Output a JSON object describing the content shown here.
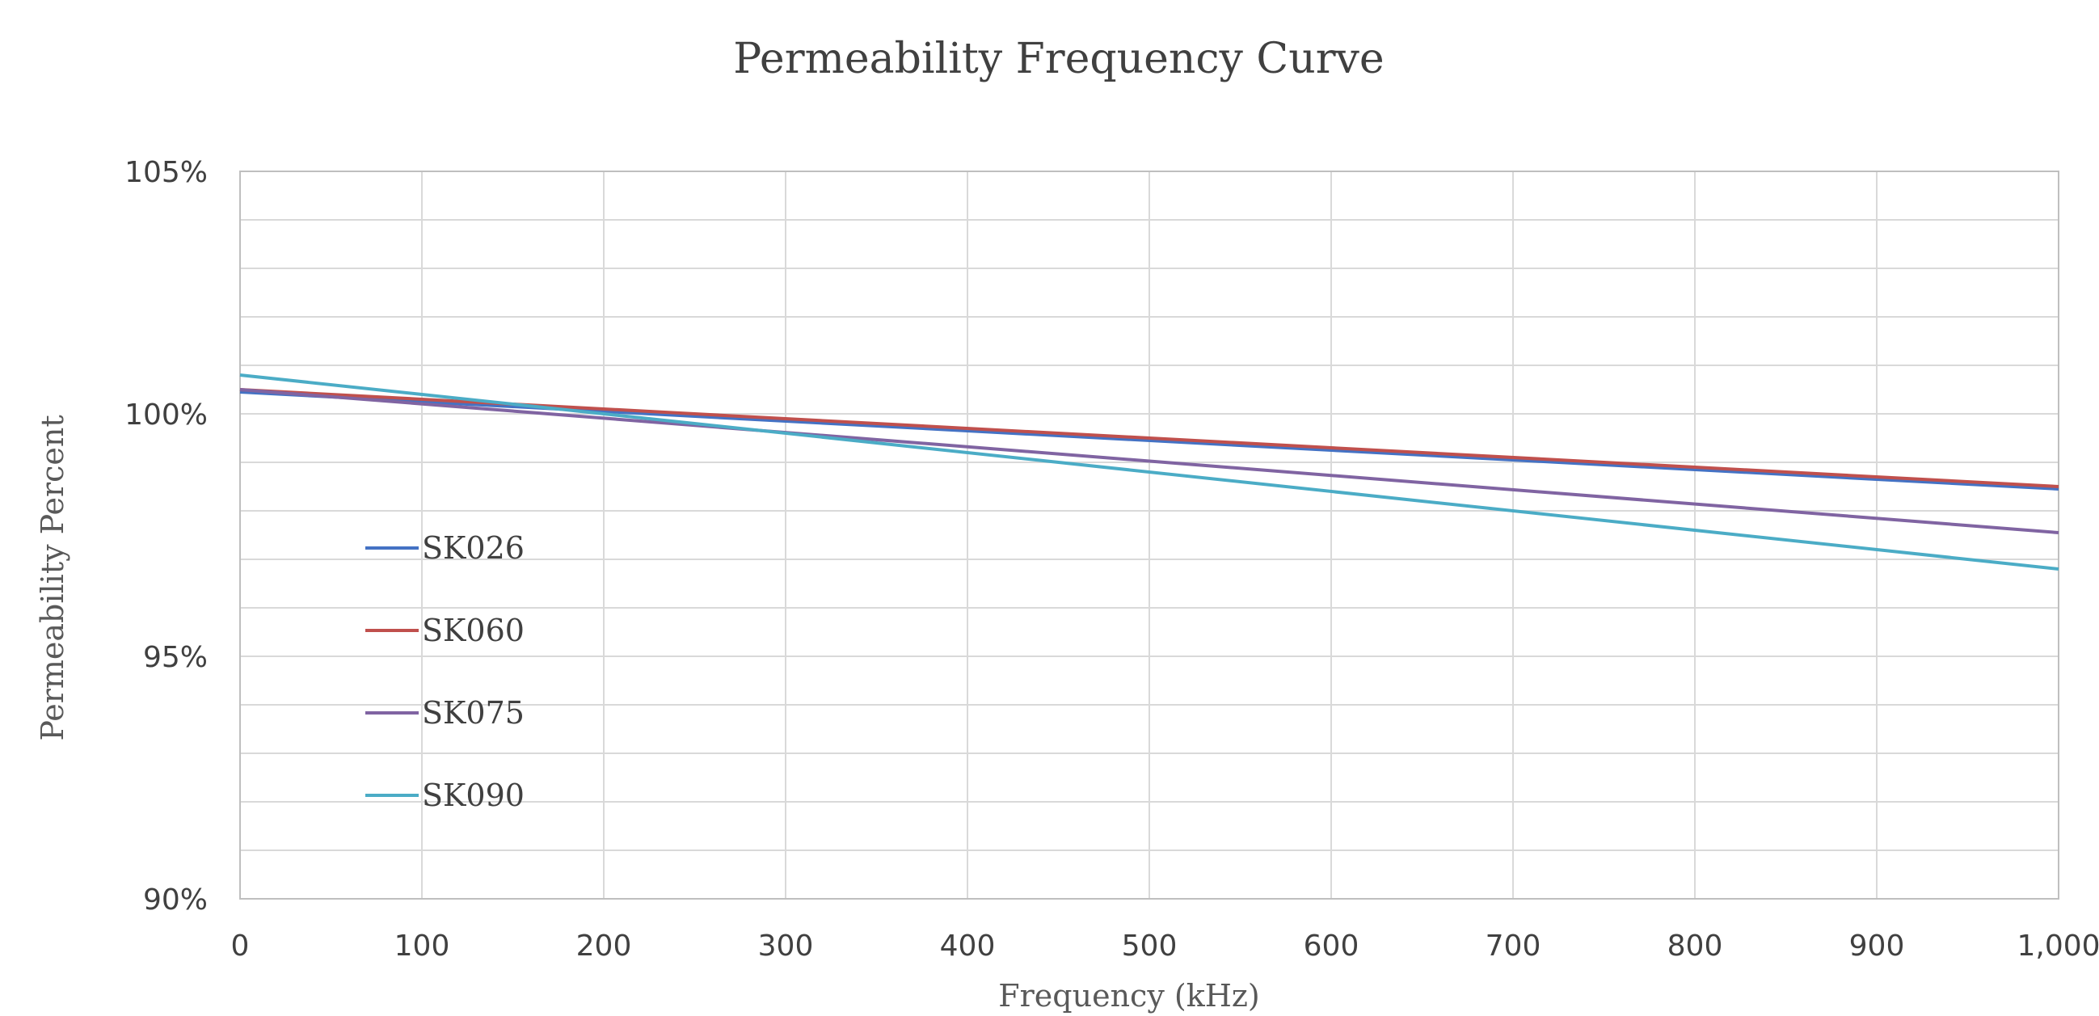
{
  "chart_data": {
    "type": "line",
    "title": "Permeability Frequency Curve",
    "xlabel": "Frequency (kHz)",
    "ylabel": "Permeability Percent",
    "xlim": [
      0,
      1000
    ],
    "ylim": [
      90,
      105
    ],
    "x_ticks": [
      0,
      100,
      200,
      300,
      400,
      500,
      600,
      700,
      800,
      900,
      1000
    ],
    "x_tick_labels": [
      "0",
      "100",
      "200",
      "300",
      "400",
      "500",
      "600",
      "700",
      "800",
      "900",
      "1,000"
    ],
    "y_ticks": [
      90,
      95,
      100,
      105
    ],
    "y_tick_labels": [
      "90%",
      "95%",
      "100%",
      "105%"
    ],
    "y_minor_step": 1,
    "grid": true,
    "legend_position": "left",
    "series": [
      {
        "name": "SK026",
        "color": "#4472C4",
        "x": [
          0,
          1000
        ],
        "y": [
          100.45,
          98.45
        ]
      },
      {
        "name": "SK060",
        "color": "#C0504D",
        "x": [
          0,
          1000
        ],
        "y": [
          100.5,
          98.5
        ]
      },
      {
        "name": "SK075",
        "color": "#8064A2",
        "x": [
          0,
          1000
        ],
        "y": [
          100.5,
          97.55
        ]
      },
      {
        "name": "SK090",
        "color": "#4BACC6",
        "x": [
          0,
          1000
        ],
        "y": [
          100.8,
          96.8
        ]
      }
    ]
  }
}
